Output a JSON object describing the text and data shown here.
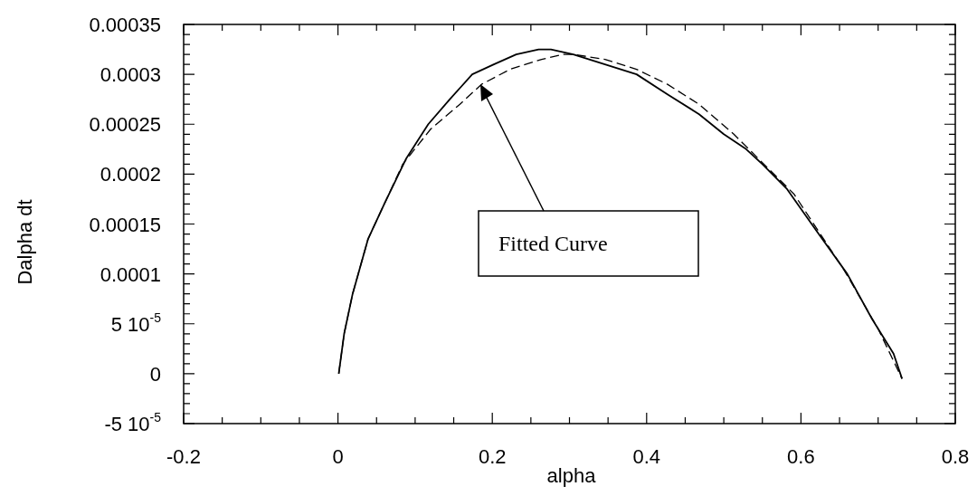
{
  "chart_data": {
    "type": "line",
    "xlabel": "alpha",
    "ylabel": "Dalpha dt",
    "xlim": [
      -0.2,
      0.8
    ],
    "xticks": [
      -0.2,
      {
        "value": -0.15,
        "label": null
      },
      {
        "value": -0.1,
        "label": null
      },
      {
        "value": -0.05,
        "label": null
      },
      0,
      {
        "value": 0.05,
        "label": null
      },
      {
        "value": 0.1,
        "label": null
      },
      {
        "value": 0.15,
        "label": null
      },
      0.2,
      {
        "value": 0.25,
        "label": null
      },
      {
        "value": 0.3,
        "label": null
      },
      {
        "value": 0.35,
        "label": null
      },
      0.4,
      {
        "value": 0.45,
        "label": null
      },
      {
        "value": 0.5,
        "label": null
      },
      {
        "value": 0.55,
        "label": null
      },
      0.6,
      {
        "value": 0.65,
        "label": null
      },
      {
        "value": 0.7,
        "label": null
      },
      {
        "value": 0.75,
        "label": null
      },
      0.8
    ],
    "ylim": [
      -5e-05,
      0.00035
    ],
    "yticks": [
      {
        "value": -5e-05,
        "label": "-5 10$^{-5}$"
      },
      {
        "value": -4e-05,
        "label": null
      },
      {
        "value": -3e-05,
        "label": null
      },
      {
        "value": -2e-05,
        "label": null
      },
      {
        "value": -1e-05,
        "label": null
      },
      0,
      {
        "value": 1e-05,
        "label": null
      },
      {
        "value": 2e-05,
        "label": null
      },
      {
        "value": 3e-05,
        "label": null
      },
      {
        "value": 4e-05,
        "label": null
      },
      {
        "value": 5e-05,
        "label": "5 10$^{-5}$"
      },
      {
        "value": 6e-05,
        "label": null
      },
      {
        "value": 7e-05,
        "label": null
      },
      {
        "value": 8e-05,
        "label": null
      },
      {
        "value": 9e-05,
        "label": null
      },
      0.0001,
      {
        "value": 0.00011,
        "label": null
      },
      {
        "value": 0.00012,
        "label": null
      },
      {
        "value": 0.00013,
        "label": null
      },
      {
        "value": 0.00014,
        "label": null
      },
      0.00015,
      {
        "value": 0.00016,
        "label": null
      },
      {
        "value": 0.00017,
        "label": null
      },
      {
        "value": 0.00018,
        "label": null
      },
      {
        "value": 0.00019,
        "label": null
      },
      0.0002,
      {
        "value": 0.00021,
        "label": null
      },
      {
        "value": 0.00022,
        "label": null
      },
      {
        "value": 0.00023,
        "label": null
      },
      {
        "value": 0.00024,
        "label": null
      },
      0.00025,
      {
        "value": 0.00026,
        "label": null
      },
      {
        "value": 0.00027,
        "label": null
      },
      {
        "value": 0.00028,
        "label": null
      },
      {
        "value": 0.00029,
        "label": null
      },
      0.0003,
      {
        "value": 0.00031,
        "label": null
      },
      {
        "value": 0.00032,
        "label": null
      },
      {
        "value": 0.00033,
        "label": null
      },
      {
        "value": 0.00034,
        "label": null
      },
      0.00035
    ],
    "grid": false,
    "legend": false,
    "marker": "none",
    "annotations": [
      "Fitted Curve"
    ],
    "series": [
      {
        "color": "#000000",
        "line_style": "solid",
        "x": [
          0.001,
          0.008,
          0.019,
          0.039,
          0.06,
          0.088,
          0.117,
          0.145,
          0.174,
          0.202,
          0.231,
          0.26,
          0.276,
          0.305,
          0.346,
          0.387,
          0.427,
          0.468,
          0.5,
          0.529,
          0.55,
          0.582,
          0.623,
          0.66,
          0.692,
          0.72,
          0.731
        ],
        "values": [
          0,
          4e-05,
          8e-05,
          0.000135,
          0.00017,
          0.000215,
          0.00025,
          0.000275,
          0.0003,
          0.00031,
          0.00032,
          0.000325,
          0.000325,
          0.00032,
          0.00031,
          0.0003,
          0.00028,
          0.00026,
          0.00024,
          0.000225,
          0.00021,
          0.000185,
          0.00014,
          0.0001,
          5.5e-05,
          2e-05,
          -5e-06
        ]
      },
      {
        "color": "#000000",
        "line_style": "dashed",
        "x": [
          0.001,
          0.008,
          0.019,
          0.039,
          0.06,
          0.084,
          0.12,
          0.158,
          0.186,
          0.223,
          0.264,
          0.292,
          0.305,
          0.346,
          0.387,
          0.427,
          0.468,
          0.513,
          0.591,
          0.655,
          0.7,
          0.731
        ],
        "values": [
          0,
          4e-05,
          8e-05,
          0.000135,
          0.00017,
          0.00021,
          0.000245,
          0.00027,
          0.00029,
          0.000305,
          0.000315,
          0.00032,
          0.00032,
          0.000315,
          0.000305,
          0.00029,
          0.00027,
          0.00024,
          0.00018,
          0.000105,
          4.5e-05,
          -5e-06
        ]
      }
    ]
  }
}
